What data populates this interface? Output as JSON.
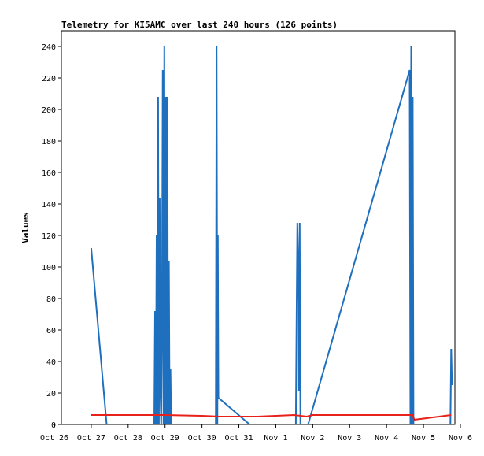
{
  "chart_data": {
    "type": "line",
    "title": "Telemetry for KI5AMC over last 240 hours (126 points)",
    "xlabel": "",
    "ylabel": "Values",
    "ylim": [
      0,
      255
    ],
    "yticks": [
      0,
      20,
      40,
      60,
      80,
      100,
      120,
      140,
      160,
      180,
      200,
      220,
      240
    ],
    "xlim": [
      "2025-10-26",
      "2025-11-06"
    ],
    "xticks": [
      {
        "x": "2025-10-26",
        "label": "Oct 26"
      },
      {
        "x": "2025-10-27",
        "label": "Oct 27"
      },
      {
        "x": "2025-10-28",
        "label": "Oct 28"
      },
      {
        "x": "2025-10-29",
        "label": "Oct 29"
      },
      {
        "x": "2025-10-30",
        "label": "Oct 30"
      },
      {
        "x": "2025-10-31",
        "label": "Oct 31"
      },
      {
        "x": "2025-11-01",
        "label": "Nov 1"
      },
      {
        "x": "2025-11-02",
        "label": "Nov 2"
      },
      {
        "x": "2025-11-03",
        "label": "Nov 3"
      },
      {
        "x": "2025-11-04",
        "label": "Nov 4"
      },
      {
        "x": "2025-11-05",
        "label": "Nov 5"
      },
      {
        "x": "2025-11-06",
        "label": "Nov 6"
      }
    ],
    "grid": false,
    "series": [
      {
        "color": "#1f6fbf",
        "points": [
          [
            "2025-10-27 00:00",
            112
          ],
          [
            "2025-10-27 10:00",
            0
          ],
          [
            "2025-10-28 17:00",
            0
          ],
          [
            "2025-10-28 17:30",
            72
          ],
          [
            "2025-10-28 18:00",
            0
          ],
          [
            "2025-10-28 18:30",
            120
          ],
          [
            "2025-10-28 19:00",
            0
          ],
          [
            "2025-10-28 19:30",
            208
          ],
          [
            "2025-10-28 20:00",
            0
          ],
          [
            "2025-10-28 20:30",
            144
          ],
          [
            "2025-10-28 21:00",
            20
          ],
          [
            "2025-10-28 21:30",
            0
          ],
          [
            "2025-10-28 22:00",
            60
          ],
          [
            "2025-10-28 22:30",
            225
          ],
          [
            "2025-10-28 23:00",
            0
          ],
          [
            "2025-10-28 23:30",
            240
          ],
          [
            "2025-10-29 00:00",
            0
          ],
          [
            "2025-10-29 00:30",
            208
          ],
          [
            "2025-10-29 01:00",
            0
          ],
          [
            "2025-10-29 01:30",
            208
          ],
          [
            "2025-10-29 02:00",
            0
          ],
          [
            "2025-10-29 02:30",
            104
          ],
          [
            "2025-10-29 03:00",
            0
          ],
          [
            "2025-10-29 03:30",
            35
          ],
          [
            "2025-10-29 04:00",
            0
          ],
          [
            "2025-10-30 09:00",
            0
          ],
          [
            "2025-10-30 09:30",
            240
          ],
          [
            "2025-10-30 10:00",
            0
          ],
          [
            "2025-10-30 10:20",
            120
          ],
          [
            "2025-10-30 10:40",
            17
          ],
          [
            "2025-10-31 07:00",
            0
          ],
          [
            "2025-11-01 13:00",
            0
          ],
          [
            "2025-11-01 13:30",
            64
          ],
          [
            "2025-11-01 14:00",
            128
          ],
          [
            "2025-11-01 14:30",
            106
          ],
          [
            "2025-11-01 15:00",
            21
          ],
          [
            "2025-11-01 15:30",
            128
          ],
          [
            "2025-11-01 16:00",
            0
          ],
          [
            "2025-11-01 21:00",
            0
          ],
          [
            "2025-11-04 15:00",
            225
          ],
          [
            "2025-11-04 15:30",
            0
          ],
          [
            "2025-11-04 16:00",
            240
          ],
          [
            "2025-11-04 16:30",
            0
          ],
          [
            "2025-11-04 17:00",
            208
          ],
          [
            "2025-11-04 17:30",
            0
          ],
          [
            "2025-11-05 17:30",
            0
          ],
          [
            "2025-11-05 18:00",
            48
          ],
          [
            "2025-11-05 18:30",
            25
          ]
        ]
      },
      {
        "color": "#e8211b",
        "points": [
          [
            "2025-10-27 00:00",
            6
          ],
          [
            "2025-10-29 00:00",
            6
          ],
          [
            "2025-10-30 00:00",
            5.5
          ],
          [
            "2025-10-30 12:00",
            5
          ],
          [
            "2025-10-31 12:00",
            5
          ],
          [
            "2025-11-01 12:00",
            6
          ],
          [
            "2025-11-01 20:00",
            5
          ],
          [
            "2025-11-02 00:00",
            6
          ],
          [
            "2025-11-04 17:00",
            6
          ],
          [
            "2025-11-04 18:00",
            3
          ],
          [
            "2025-11-05 18:00",
            6
          ]
        ]
      },
      {
        "color": "#000000",
        "points": [
          [
            "2025-10-27 00:00",
            0
          ],
          [
            "2025-11-05 18:00",
            0
          ]
        ]
      }
    ]
  }
}
